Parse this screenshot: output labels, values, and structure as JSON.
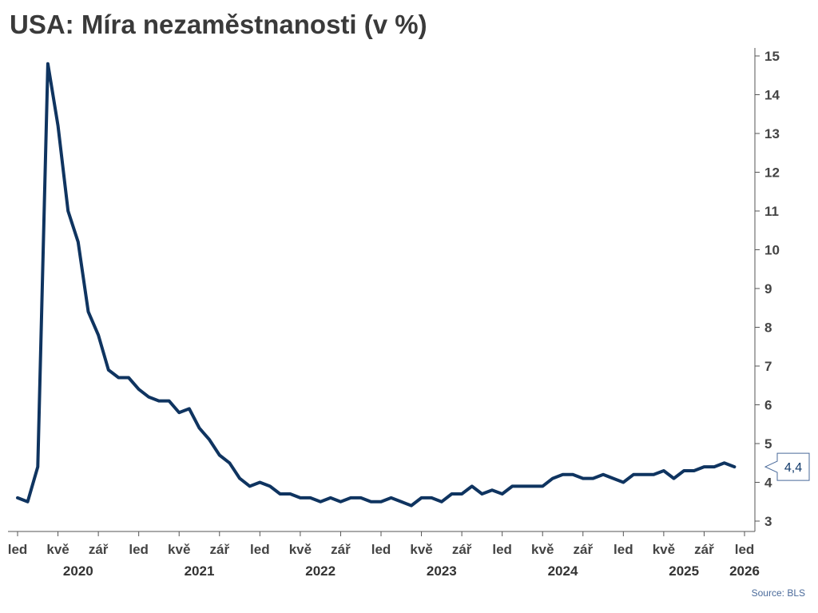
{
  "title": "USA: Míra nezaměstnanosti (v %)",
  "source": "Source: BLS",
  "colors": {
    "line": "#0f3460",
    "axis": "#555555",
    "text": "#444444"
  },
  "chart_data": {
    "type": "line",
    "title": "USA: Míra nezaměstnanosti (v %)",
    "xlabel": "",
    "ylabel": "",
    "ylim": [
      3,
      15
    ],
    "yticks": [
      "3",
      "4",
      "5",
      "6",
      "7",
      "8",
      "9",
      "10",
      "11",
      "12",
      "13",
      "14",
      "15"
    ],
    "y_axis_side": "right",
    "grid": false,
    "x_start": "2020-01",
    "x_end": "2026-01",
    "month_ticks": [
      {
        "month": 0,
        "label": "led"
      },
      {
        "month": 4,
        "label": "kvě"
      },
      {
        "month": 8,
        "label": "zář"
      },
      {
        "month": 12,
        "label": "led"
      },
      {
        "month": 16,
        "label": "kvě"
      },
      {
        "month": 20,
        "label": "zář"
      },
      {
        "month": 24,
        "label": "led"
      },
      {
        "month": 28,
        "label": "kvě"
      },
      {
        "month": 32,
        "label": "zář"
      },
      {
        "month": 36,
        "label": "led"
      },
      {
        "month": 40,
        "label": "kvě"
      },
      {
        "month": 44,
        "label": "zář"
      },
      {
        "month": 48,
        "label": "led"
      },
      {
        "month": 52,
        "label": "kvě"
      },
      {
        "month": 56,
        "label": "zář"
      },
      {
        "month": 60,
        "label": "led"
      },
      {
        "month": 64,
        "label": "kvě"
      },
      {
        "month": 68,
        "label": "zář"
      },
      {
        "month": 72,
        "label": "led"
      }
    ],
    "year_labels": [
      {
        "month": 6,
        "label": "2020"
      },
      {
        "month": 18,
        "label": "2021"
      },
      {
        "month": 30,
        "label": "2022"
      },
      {
        "month": 42,
        "label": "2023"
      },
      {
        "month": 54,
        "label": "2024"
      },
      {
        "month": 66,
        "label": "2025"
      },
      {
        "month": 72,
        "label": "2026"
      }
    ],
    "series": [
      {
        "start": "2020-01",
        "values": [
          3.6,
          3.5,
          4.4,
          14.8,
          13.2,
          11.0,
          10.2,
          8.4,
          7.8,
          6.9,
          6.7,
          6.7,
          6.4,
          6.2,
          6.1,
          6.1,
          5.8,
          5.9,
          5.4,
          5.1,
          4.7,
          4.5,
          4.1,
          3.9,
          4.0,
          3.9,
          3.7,
          3.7,
          3.6,
          3.6,
          3.5,
          3.6,
          3.5,
          3.6,
          3.6,
          3.5,
          3.5,
          3.6,
          3.5,
          3.4,
          3.6,
          3.6,
          3.5,
          3.7,
          3.7,
          3.9,
          3.7,
          3.8,
          3.7,
          3.9,
          3.9,
          3.9,
          3.9,
          4.1,
          4.2,
          4.2,
          4.1,
          4.1,
          4.2,
          4.1,
          4.0,
          4.2,
          4.2,
          4.2,
          4.3,
          4.1,
          4.3,
          4.3,
          4.4,
          4.4,
          4.5,
          4.4
        ]
      }
    ],
    "last_value_label": "4,4"
  }
}
